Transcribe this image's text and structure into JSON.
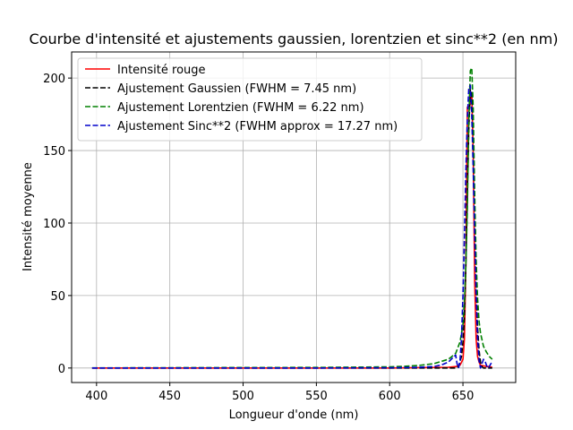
{
  "chart_data": {
    "type": "line",
    "title": "Courbe d'intensité et ajustements gaussien, lorentzien et sinc**2 (en nm)",
    "xlabel": "Longueur d'onde (nm)",
    "ylabel": "Intensité moyenne",
    "xlim": [
      383,
      686
    ],
    "ylim": [
      -10,
      218
    ],
    "xticks": [
      400,
      450,
      500,
      550,
      600,
      650
    ],
    "yticks": [
      0,
      50,
      100,
      150,
      200
    ],
    "grid": true,
    "legend_position": "upper-left",
    "series": [
      {
        "name": "Intensité rouge",
        "color": "#ff0000",
        "dash": "solid",
        "x": [
          397,
          450,
          500,
          550,
          600,
          640,
          645,
          648,
          650,
          651,
          652,
          653,
          654,
          655,
          656,
          657,
          658,
          659,
          660,
          661,
          662,
          664,
          666,
          668,
          670
        ],
        "y": [
          0,
          0,
          0,
          0,
          0,
          0.5,
          1,
          2,
          6,
          20,
          70,
          180,
          180,
          182,
          190,
          150,
          60,
          20,
          8,
          4,
          2,
          1.5,
          1,
          1,
          0.5
        ]
      },
      {
        "name": "Ajustement Gaussien (FWHM = 7.45 nm)",
        "color": "#000000",
        "dash": "dashed",
        "x": [
          397,
          450,
          500,
          550,
          600,
          640,
          645,
          647,
          649,
          650,
          651,
          652,
          653,
          654,
          655,
          656,
          657,
          658,
          659,
          660,
          661,
          662,
          663,
          664,
          666,
          668,
          670
        ],
        "y": [
          0,
          0,
          0,
          0,
          0,
          0,
          0,
          1,
          8,
          18,
          36,
          72,
          120,
          165,
          192,
          190,
          160,
          110,
          60,
          28,
          12,
          4,
          1,
          0,
          0,
          0,
          0
        ]
      },
      {
        "name": "Ajustement Lorentzien (FWHM = 6.22 nm)",
        "color": "#008000",
        "dash": "dashed",
        "x": [
          397,
          450,
          500,
          550,
          580,
          600,
          610,
          620,
          630,
          640,
          645,
          648,
          650,
          651,
          652,
          653,
          654,
          655,
          656,
          657,
          658,
          659,
          660,
          661,
          662,
          664,
          666,
          668,
          670
        ],
        "y": [
          0.1,
          0.2,
          0.3,
          0.4,
          0.6,
          0.8,
          1.2,
          1.8,
          3,
          6,
          10,
          18,
          30,
          45,
          70,
          110,
          170,
          205,
          207,
          180,
          120,
          75,
          48,
          32,
          24,
          15,
          11,
          8,
          6
        ]
      },
      {
        "name": "Ajustement Sinc**2 (FWHM approx = 17.27 nm)",
        "color": "#0000cc",
        "dash": "dashed",
        "x": [
          397,
          450,
          500,
          550,
          600,
          620,
          630,
          635,
          640,
          642,
          644,
          645,
          646,
          647,
          648,
          649,
          650,
          651,
          652,
          653,
          654,
          655,
          656,
          657,
          658,
          659,
          660,
          661,
          662,
          663,
          664,
          665,
          666,
          667,
          668,
          669,
          670
        ],
        "y": [
          0,
          0,
          0,
          0,
          0.2,
          0.5,
          1,
          2,
          4,
          6,
          8,
          9,
          3,
          0,
          5,
          20,
          50,
          90,
          135,
          172,
          193,
          195,
          175,
          138,
          92,
          50,
          20,
          5,
          0,
          3,
          6,
          5,
          2,
          0,
          1,
          3,
          4
        ]
      }
    ]
  }
}
